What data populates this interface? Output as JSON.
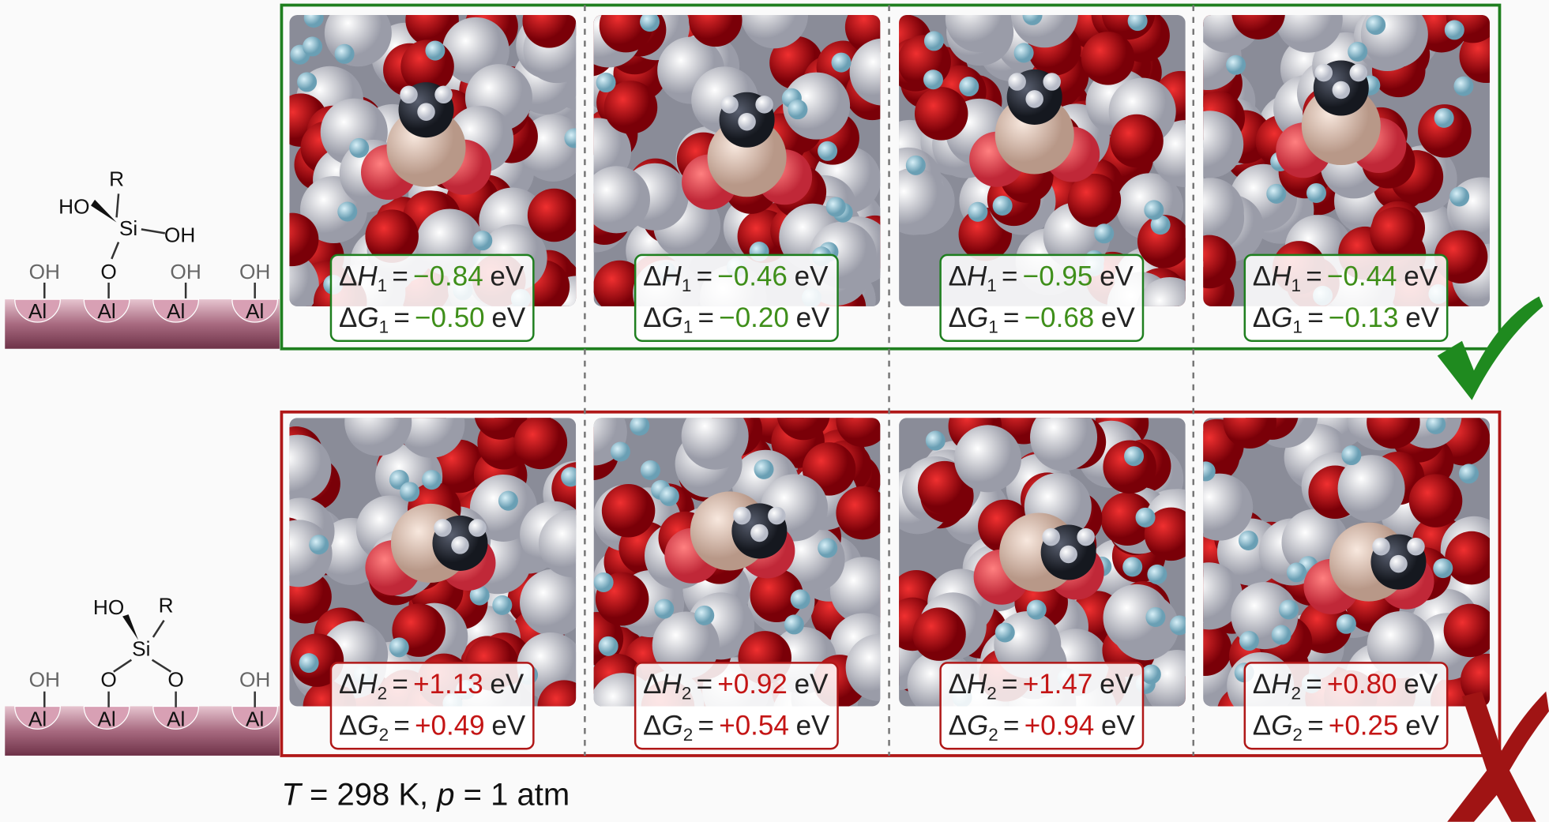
{
  "rows": [
    {
      "box_color": "#1f7f1f",
      "value_color": "#3f8f1a",
      "delta": "Δ",
      "enthalpy": "H",
      "free_energy": "G",
      "subscript": "1",
      "equals": "=",
      "unit": "eV",
      "structure_labels": [
        "OH",
        "Al",
        "O",
        "Al",
        "OH",
        "Al",
        "OH",
        "Al",
        "R",
        "HO",
        "Si",
        "OH"
      ],
      "panels": [
        {
          "dH": "−0.84",
          "dG": "−0.50"
        },
        {
          "dH": "−0.46",
          "dG": "−0.20"
        },
        {
          "dH": "−0.95",
          "dG": "−0.68"
        },
        {
          "dH": "−0.44",
          "dG": "−0.13"
        }
      ]
    },
    {
      "box_color": "#b01818",
      "value_color": "#c41515",
      "delta": "Δ",
      "enthalpy": "H",
      "free_energy": "G",
      "subscript": "2",
      "equals": "=",
      "unit": "eV",
      "structure_labels": [
        "OH",
        "Al",
        "O",
        "Al",
        "O",
        "Al",
        "OH",
        "Al",
        "HO",
        "R",
        "Si"
      ],
      "panels": [
        {
          "dH": "+1.13",
          "dG": "+0.49"
        },
        {
          "dH": "+0.92",
          "dG": "+0.54"
        },
        {
          "dH": "+1.47",
          "dG": "+0.94"
        },
        {
          "dH": "+0.80",
          "dG": "+0.25"
        }
      ]
    }
  ],
  "footer": {
    "T": "T",
    "T_text": " = 298 K, ",
    "p": "p",
    "p_text": " = 1 atm"
  }
}
